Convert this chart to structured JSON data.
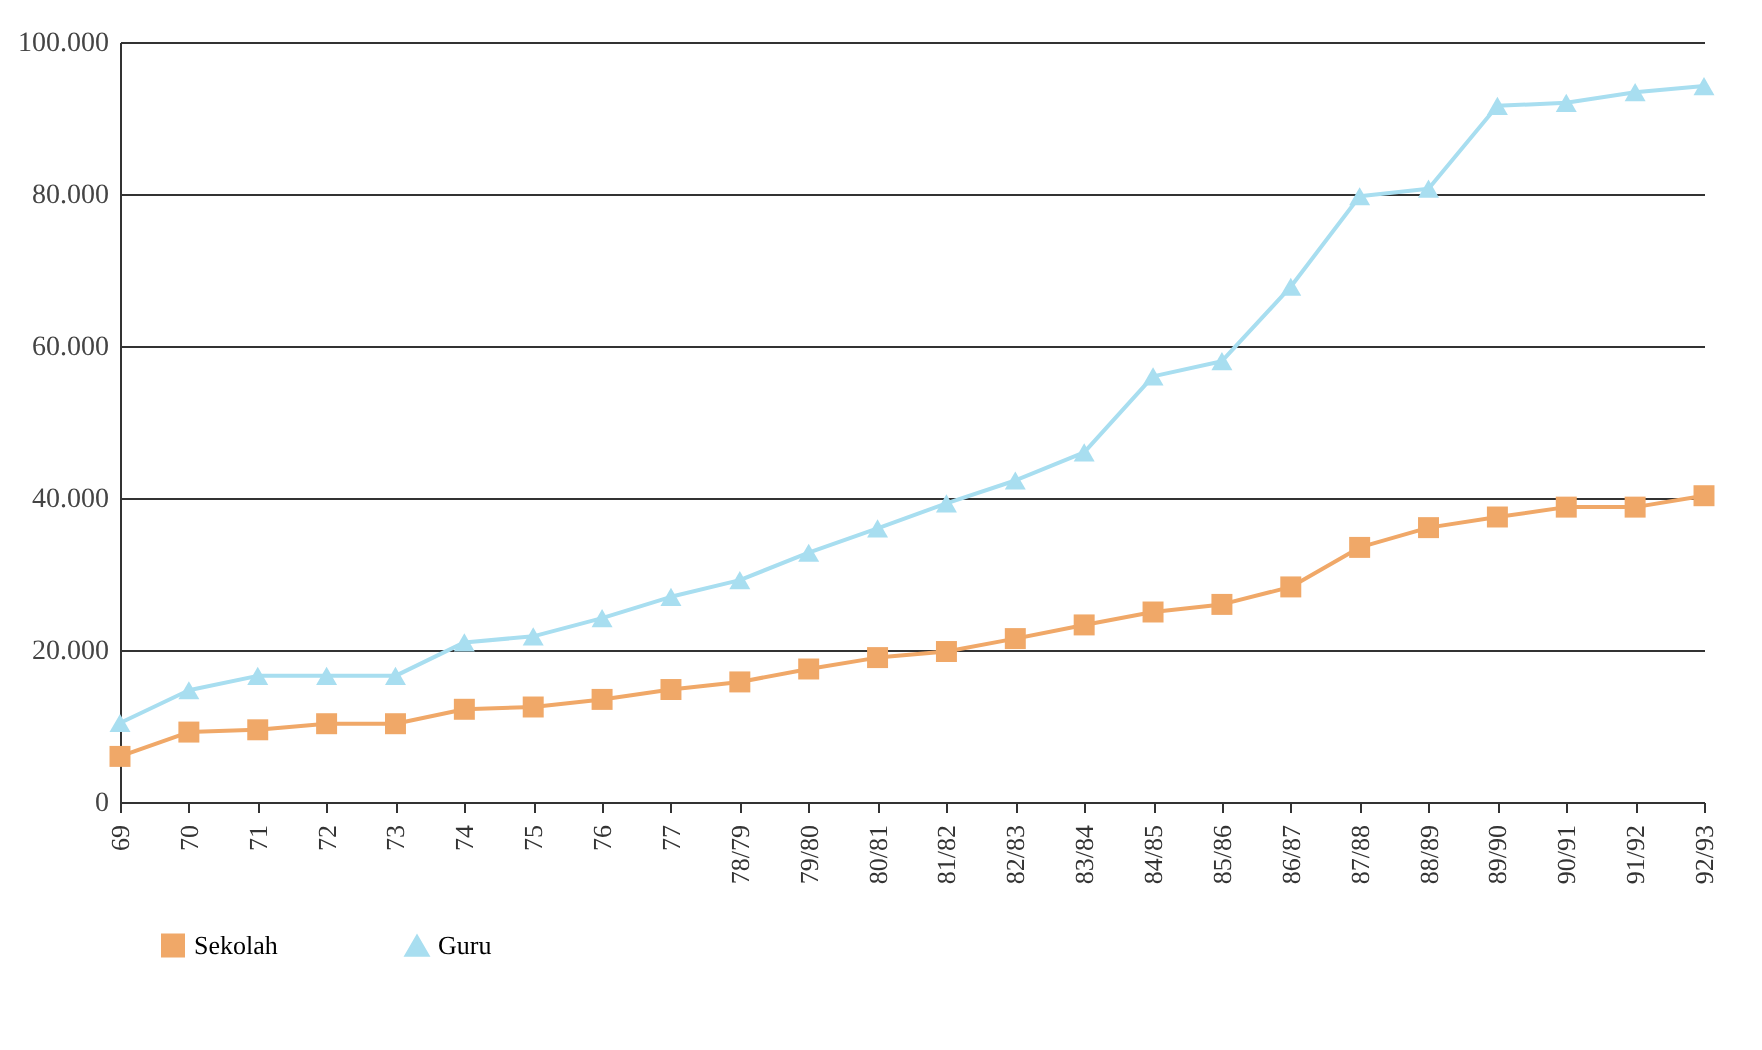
{
  "chart_data": {
    "type": "line",
    "categories": [
      "69",
      "70",
      "71",
      "72",
      "73",
      "74",
      "75",
      "76",
      "77",
      "78/79",
      "79/80",
      "80/81",
      "81/82",
      "82/83",
      "83/84",
      "84/85",
      "85/86",
      "86/87",
      "87/88",
      "88/89",
      "89/90",
      "90/91",
      "91/92",
      "92/93"
    ],
    "series": [
      {
        "name": "Sekolah",
        "color": "#f0a868",
        "marker": "square",
        "values": [
          6000,
          9200,
          9500,
          10300,
          10300,
          12200,
          12500,
          13500,
          14800,
          15800,
          17500,
          19000,
          19800,
          21500,
          23300,
          25000,
          26000,
          28300,
          33500,
          36100,
          37500,
          38800,
          38800,
          40300
        ]
      },
      {
        "name": "Guru",
        "color": "#a8def0",
        "marker": "triangle",
        "values": [
          10400,
          14700,
          16600,
          16600,
          16600,
          21000,
          21800,
          24200,
          27000,
          29200,
          32800,
          36000,
          39300,
          42300,
          46000,
          56000,
          58000,
          67800,
          79700,
          80700,
          91600,
          92000,
          93400,
          94200
        ]
      }
    ],
    "ylim": [
      0,
      100000
    ],
    "yticks": [
      {
        "value": 0,
        "label": "0"
      },
      {
        "value": 20000,
        "label": "20.000"
      },
      {
        "value": 40000,
        "label": "40.000"
      },
      {
        "value": 60000,
        "label": "60.000"
      },
      {
        "value": 80000,
        "label": "80.000"
      },
      {
        "value": 100000,
        "label": "100.000"
      }
    ],
    "grid": "y",
    "legend": "bottom left",
    "line_style": "solid"
  }
}
